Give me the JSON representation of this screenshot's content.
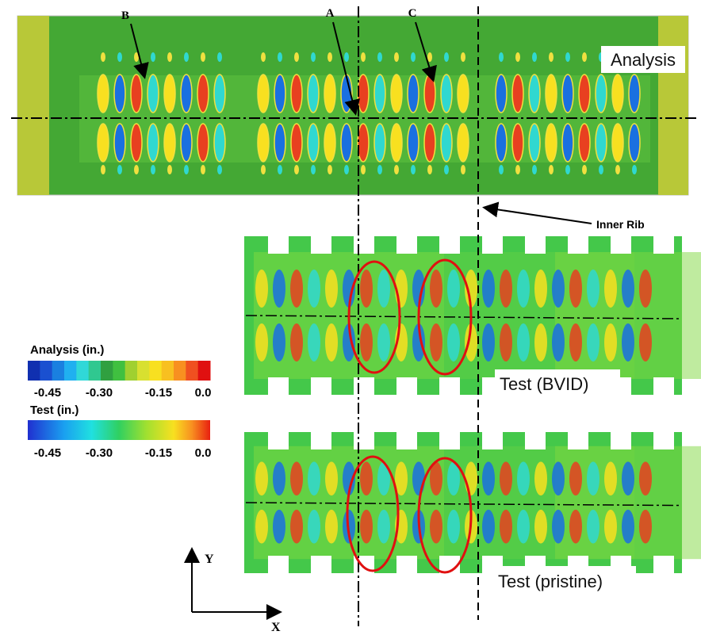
{
  "labels": {
    "point_b": "B",
    "point_a": "A",
    "point_c": "C",
    "analysis": "Analysis",
    "inner_rib": "Inner Rib",
    "test_bvid": "Test (BVID)",
    "test_pristine": "Test (pristine)"
  },
  "legends": [
    {
      "title": "Analysis (in.)",
      "ticks": [
        "-0.45",
        "-0.30",
        "-0.15",
        "0.0"
      ]
    },
    {
      "title": "Test (in.)",
      "ticks": [
        "-0.45",
        "-0.30",
        "-0.15",
        "0.0"
      ]
    }
  ],
  "axes": {
    "y": "Y",
    "x": "X"
  }
}
